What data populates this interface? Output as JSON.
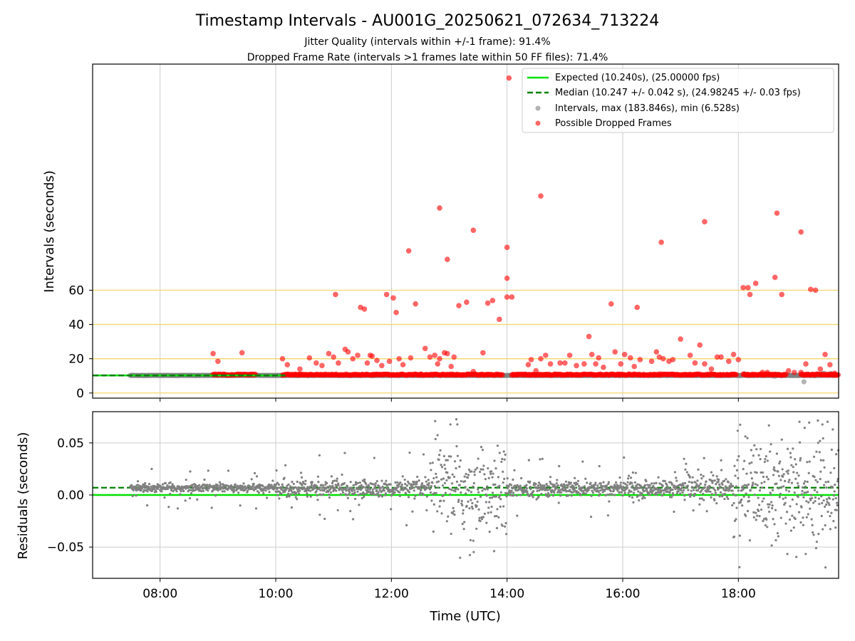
{
  "title": "Timestamp Intervals - AU001G_20250621_072634_713224",
  "subtitle_lines": [
    "Jitter Quality (intervals within +/-1 frame): 91.4%",
    "Dropped Frame Rate (intervals >1 frames late within 50 FF files): 71.4%"
  ],
  "colors": {
    "expected": "#00e000",
    "median": "#008000",
    "intervals": "#808080",
    "dropped": "#ff0000",
    "threshold_lines": "#f5d76e",
    "grid": "#cccccc"
  },
  "chart_data": [
    {
      "type": "scatter",
      "xlabel": "",
      "ylabel": "Intervals (seconds)",
      "x_ticks": [
        "08:00",
        "10:00",
        "12:00",
        "14:00",
        "16:00",
        "18:00"
      ],
      "y_ticks": [
        "0",
        "20",
        "40",
        "60"
      ],
      "xlim": [
        "06:50",
        "19:44"
      ],
      "ylim": [
        -3,
        192
      ],
      "grid": true,
      "legend_position": "top-right",
      "legend": [
        "Expected (10.240s), (25.00000 fps)",
        "Median (10.247 +/- 0.042 s), (24.98245 +/- 0.03 fps)",
        "Intervals, max (183.846s), min (6.528s)",
        "Possible Dropped Frames"
      ],
      "reference_lines": {
        "expected_interval": 10.24,
        "median_interval": 10.247,
        "threshold_levels": [
          0,
          20,
          40,
          60
        ]
      },
      "interval_time_range": [
        "07:29",
        "19:41"
      ],
      "intervals_max": 183.846,
      "intervals_min": 6.528,
      "dropped_frame_bands": [
        [
          "08:55",
          "09:25"
        ],
        [
          "09:27",
          "09:40"
        ],
        [
          "10:07",
          "10:25"
        ],
        [
          "10:25",
          "13:55"
        ],
        [
          "14:05",
          "17:45"
        ],
        [
          "17:47",
          "17:58"
        ],
        [
          "18:05",
          "18:50"
        ],
        [
          "19:05",
          "19:44"
        ]
      ],
      "dropped_frames": [
        {
          "t": "08:55",
          "v": 23
        },
        {
          "t": "09:00",
          "v": 18.5
        },
        {
          "t": "09:25",
          "v": 23.5
        },
        {
          "t": "10:07",
          "v": 20
        },
        {
          "t": "10:12",
          "v": 16.5
        },
        {
          "t": "10:25",
          "v": 14
        },
        {
          "t": "10:35",
          "v": 20.5
        },
        {
          "t": "10:42",
          "v": 17.5
        },
        {
          "t": "10:48",
          "v": 16
        },
        {
          "t": "10:55",
          "v": 23
        },
        {
          "t": "11:00",
          "v": 21
        },
        {
          "t": "11:02",
          "v": 57.5
        },
        {
          "t": "11:05",
          "v": 17.5
        },
        {
          "t": "11:12",
          "v": 25.5
        },
        {
          "t": "11:15",
          "v": 24
        },
        {
          "t": "11:20",
          "v": 20
        },
        {
          "t": "11:25",
          "v": 22
        },
        {
          "t": "11:28",
          "v": 50
        },
        {
          "t": "11:32",
          "v": 49
        },
        {
          "t": "11:35",
          "v": 17.5
        },
        {
          "t": "11:38",
          "v": 22
        },
        {
          "t": "11:40",
          "v": 21.5
        },
        {
          "t": "11:45",
          "v": 19
        },
        {
          "t": "11:50",
          "v": 16
        },
        {
          "t": "11:55",
          "v": 57.5
        },
        {
          "t": "11:58",
          "v": 18.5
        },
        {
          "t": "12:02",
          "v": 55.5
        },
        {
          "t": "12:05",
          "v": 47
        },
        {
          "t": "12:08",
          "v": 20
        },
        {
          "t": "12:12",
          "v": 16.5
        },
        {
          "t": "12:20",
          "v": 20.5
        },
        {
          "t": "12:25",
          "v": 52
        },
        {
          "t": "12:35",
          "v": 26
        },
        {
          "t": "12:40",
          "v": 21
        },
        {
          "t": "12:45",
          "v": 22
        },
        {
          "t": "12:48",
          "v": 17
        },
        {
          "t": "12:50",
          "v": 20
        },
        {
          "t": "12:55",
          "v": 23.5
        },
        {
          "t": "12:58",
          "v": 23
        },
        {
          "t": "13:02",
          "v": 15.5
        },
        {
          "t": "13:05",
          "v": 21
        },
        {
          "t": "13:10",
          "v": 51
        },
        {
          "t": "13:18",
          "v": 53
        },
        {
          "t": "13:25",
          "v": 12.5
        },
        {
          "t": "13:35",
          "v": 23.5
        },
        {
          "t": "13:40",
          "v": 52.5
        },
        {
          "t": "13:45",
          "v": 54
        },
        {
          "t": "13:52",
          "v": 43
        },
        {
          "t": "14:00",
          "v": 67
        },
        {
          "t": "14:05",
          "v": 56
        },
        {
          "t": "14:00",
          "v": 56
        },
        {
          "t": "14:22",
          "v": 16.5
        },
        {
          "t": "14:25",
          "v": 19.5
        },
        {
          "t": "14:30",
          "v": 13
        },
        {
          "t": "14:35",
          "v": 20
        },
        {
          "t": "14:40",
          "v": 22
        },
        {
          "t": "14:45",
          "v": 17
        },
        {
          "t": "14:55",
          "v": 17.5
        },
        {
          "t": "15:00",
          "v": 17.5
        },
        {
          "t": "15:05",
          "v": 22
        },
        {
          "t": "15:12",
          "v": 16
        },
        {
          "t": "15:20",
          "v": 17
        },
        {
          "t": "15:25",
          "v": 33
        },
        {
          "t": "15:28",
          "v": 22.5
        },
        {
          "t": "15:32",
          "v": 17
        },
        {
          "t": "15:35",
          "v": 20.5
        },
        {
          "t": "15:40",
          "v": 15
        },
        {
          "t": "15:48",
          "v": 52
        },
        {
          "t": "15:52",
          "v": 24
        },
        {
          "t": "15:58",
          "v": 17
        },
        {
          "t": "16:02",
          "v": 22.5
        },
        {
          "t": "16:08",
          "v": 20.5
        },
        {
          "t": "16:12",
          "v": 15.5
        },
        {
          "t": "16:15",
          "v": 50
        },
        {
          "t": "16:18",
          "v": 19.5
        },
        {
          "t": "16:30",
          "v": 18.5
        },
        {
          "t": "16:35",
          "v": 24
        },
        {
          "t": "16:38",
          "v": 21
        },
        {
          "t": "16:42",
          "v": 20
        },
        {
          "t": "16:48",
          "v": 18.5
        },
        {
          "t": "16:52",
          "v": 19.5
        },
        {
          "t": "17:00",
          "v": 31.5
        },
        {
          "t": "17:10",
          "v": 22
        },
        {
          "t": "17:15",
          "v": 17.5
        },
        {
          "t": "17:20",
          "v": 28
        },
        {
          "t": "17:25",
          "v": 17
        },
        {
          "t": "17:32",
          "v": 14
        },
        {
          "t": "17:38",
          "v": 21
        },
        {
          "t": "17:42",
          "v": 21
        },
        {
          "t": "17:50",
          "v": 18.5
        },
        {
          "t": "17:55",
          "v": 22.5
        },
        {
          "t": "18:00",
          "v": 19.5
        },
        {
          "t": "18:05",
          "v": 61.5
        },
        {
          "t": "18:10",
          "v": 61.5
        },
        {
          "t": "18:12",
          "v": 57.5
        },
        {
          "t": "18:18",
          "v": 64
        },
        {
          "t": "18:25",
          "v": 12
        },
        {
          "t": "18:30",
          "v": 12
        },
        {
          "t": "18:38",
          "v": 67.5
        },
        {
          "t": "18:45",
          "v": 57.5
        },
        {
          "t": "18:52",
          "v": 13
        },
        {
          "t": "18:58",
          "v": 12
        },
        {
          "t": "19:05",
          "v": 12
        },
        {
          "t": "19:10",
          "v": 17
        },
        {
          "t": "19:15",
          "v": 60.5
        },
        {
          "t": "19:20",
          "v": 60
        },
        {
          "t": "19:25",
          "v": 14
        },
        {
          "t": "19:30",
          "v": 22.5
        },
        {
          "t": "19:35",
          "v": 16.5
        },
        {
          "t": "19:40",
          "v": 11.5
        },
        {
          "t": "12:18",
          "v": 83
        },
        {
          "t": "12:50",
          "v": 108
        },
        {
          "t": "12:58",
          "v": 78
        },
        {
          "t": "13:25",
          "v": 95
        },
        {
          "t": "14:00",
          "v": 85
        },
        {
          "t": "14:02",
          "v": 183.846
        },
        {
          "t": "14:35",
          "v": 115
        },
        {
          "t": "16:40",
          "v": 88
        },
        {
          "t": "17:25",
          "v": 100
        },
        {
          "t": "18:40",
          "v": 105
        },
        {
          "t": "19:05",
          "v": 94
        }
      ]
    },
    {
      "type": "scatter",
      "xlabel": "Time (UTC)",
      "ylabel": "Residuals (seconds)",
      "x_ticks": [
        "08:00",
        "10:00",
        "12:00",
        "14:00",
        "16:00",
        "18:00"
      ],
      "y_ticks": [
        "0.05",
        "0.00",
        "−0.05"
      ],
      "xlim": [
        "06:50",
        "19:44"
      ],
      "ylim": [
        -0.08,
        0.08
      ],
      "grid": true,
      "reference_lines": {
        "expected_residual": 0.0,
        "median_residual": 0.007
      },
      "scatter_regimes": [
        {
          "from": "07:29",
          "to": "10:00",
          "center": 0.007,
          "spread": 0.002,
          "outliers": 0.02
        },
        {
          "from": "10:00",
          "to": "12:40",
          "center": 0.006,
          "spread": 0.004,
          "outliers": 0.04
        },
        {
          "from": "12:40",
          "to": "14:00",
          "center": 0.005,
          "spread": 0.02,
          "outliers": 0.08
        },
        {
          "from": "14:00",
          "to": "17:05",
          "center": 0.006,
          "spread": 0.004,
          "outliers": 0.03
        },
        {
          "from": "17:05",
          "to": "17:55",
          "center": 0.007,
          "spread": 0.006,
          "outliers": 0.03
        },
        {
          "from": "17:55",
          "to": "19:44",
          "center": 0.005,
          "spread": 0.025,
          "outliers": 0.08
        }
      ]
    }
  ]
}
